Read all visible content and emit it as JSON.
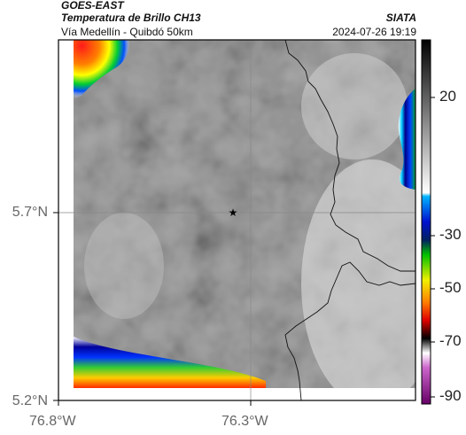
{
  "header": {
    "satellite": "GOES-EAST",
    "product": "Temperatura de Brillo CH13",
    "region": "Vía Medellín - Quibdó 50km",
    "organization": "SIATA",
    "timestamp": "2024-07-26 19:19"
  },
  "axes": {
    "latitude_labels": [
      "5.7°N",
      "5.2°N"
    ],
    "longitude_labels": [
      "76.8°W",
      "76.3°W"
    ]
  },
  "colorbar": {
    "tick_labels": [
      "20",
      "-30",
      "-50",
      "-70",
      "-90"
    ]
  },
  "colors": {
    "frame": "#000000",
    "gridline": "#888888",
    "cloud_gray": "#8e8e8e"
  }
}
